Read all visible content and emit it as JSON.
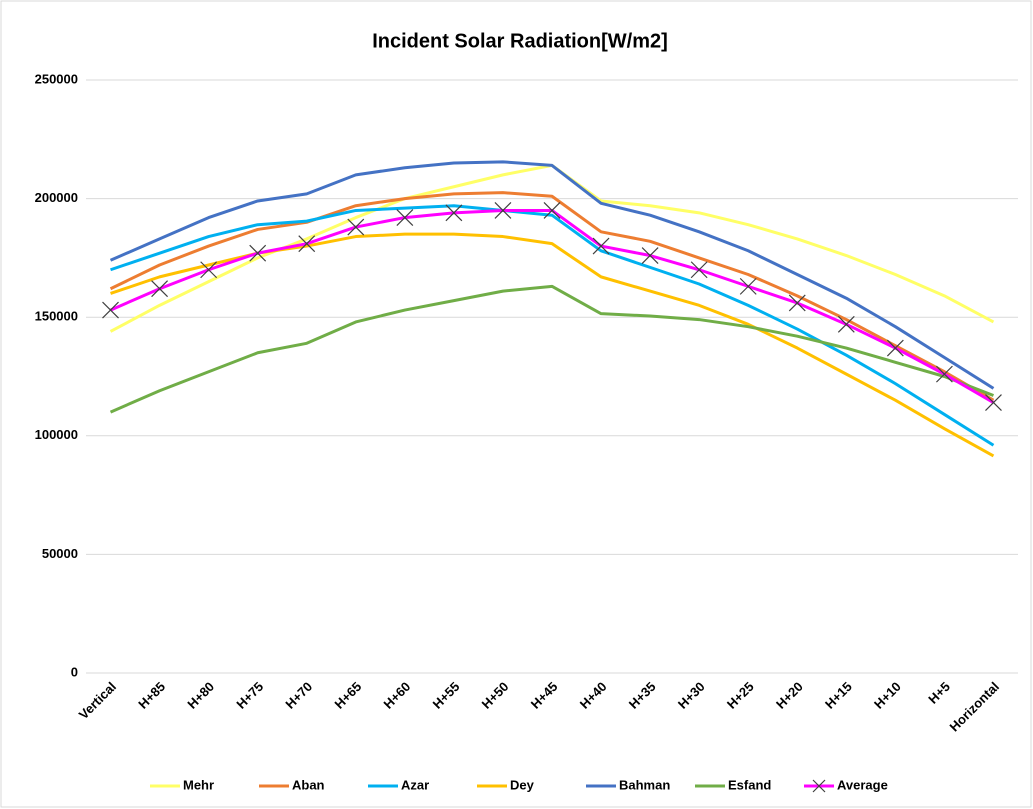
{
  "chart_data": {
    "type": "line",
    "title": "Incident Solar Radiation[W/m2]",
    "categories": [
      "Vertical",
      "H+85",
      "H+80",
      "H+75",
      "H+70",
      "H+65",
      "H+60",
      "H+55",
      "H+50",
      "H+45",
      "H+40",
      "H+35",
      "H+30",
      "H+25",
      "H+20",
      "H+15",
      "H+10",
      "H+5",
      "Horizontal"
    ],
    "series": [
      {
        "name": "Mehr",
        "color": "#ffff66",
        "values": [
          144000,
          155000,
          165000,
          175000,
          183000,
          192000,
          200000,
          205000,
          210000,
          214000,
          199000,
          197000,
          194000,
          189000,
          183000,
          176000,
          168000,
          159000,
          148000
        ]
      },
      {
        "name": "Aban",
        "color": "#ed7d31",
        "values": [
          162000,
          172000,
          180000,
          187000,
          190000,
          197000,
          200000,
          202000,
          202500,
          201000,
          186000,
          182000,
          175000,
          168000,
          159000,
          149000,
          138000,
          127000,
          115000
        ]
      },
      {
        "name": "Azar",
        "color": "#00b0f0",
        "values": [
          170000,
          177000,
          184000,
          189000,
          190500,
          195000,
          196000,
          197000,
          195000,
          193000,
          178000,
          171000,
          164000,
          155000,
          145000,
          134000,
          122000,
          109000,
          96000
        ]
      },
      {
        "name": "Dey",
        "color": "#ffc000",
        "values": [
          160000,
          167000,
          172000,
          177000,
          180000,
          184000,
          185000,
          185000,
          184000,
          181000,
          167000,
          161000,
          155000,
          147000,
          137000,
          126000,
          115000,
          103000,
          91500
        ]
      },
      {
        "name": "Bahman",
        "color": "#4472c4",
        "values": [
          174000,
          183000,
          192000,
          199000,
          202000,
          210000,
          213000,
          215000,
          215500,
          214000,
          198000,
          193000,
          186000,
          178000,
          168000,
          158000,
          146000,
          133000,
          120000
        ]
      },
      {
        "name": "Esfand",
        "color": "#70ad47",
        "values": [
          110000,
          119000,
          127000,
          135000,
          139000,
          148000,
          153000,
          157000,
          161000,
          163000,
          151500,
          150500,
          149000,
          146000,
          142000,
          137000,
          131000,
          125000,
          117000
        ]
      },
      {
        "name": "Average",
        "color": "#ff00ff",
        "marker": "x",
        "values": [
          153000,
          162000,
          170000,
          177000,
          181000,
          188000,
          192000,
          194000,
          195000,
          195000,
          180000,
          176000,
          170000,
          163000,
          156000,
          147000,
          137000,
          126000,
          114000
        ]
      }
    ],
    "ylim": [
      0,
      250000
    ],
    "yticks": [
      0,
      50000,
      100000,
      150000,
      200000,
      250000
    ],
    "grid": true,
    "legend": "bottom"
  }
}
